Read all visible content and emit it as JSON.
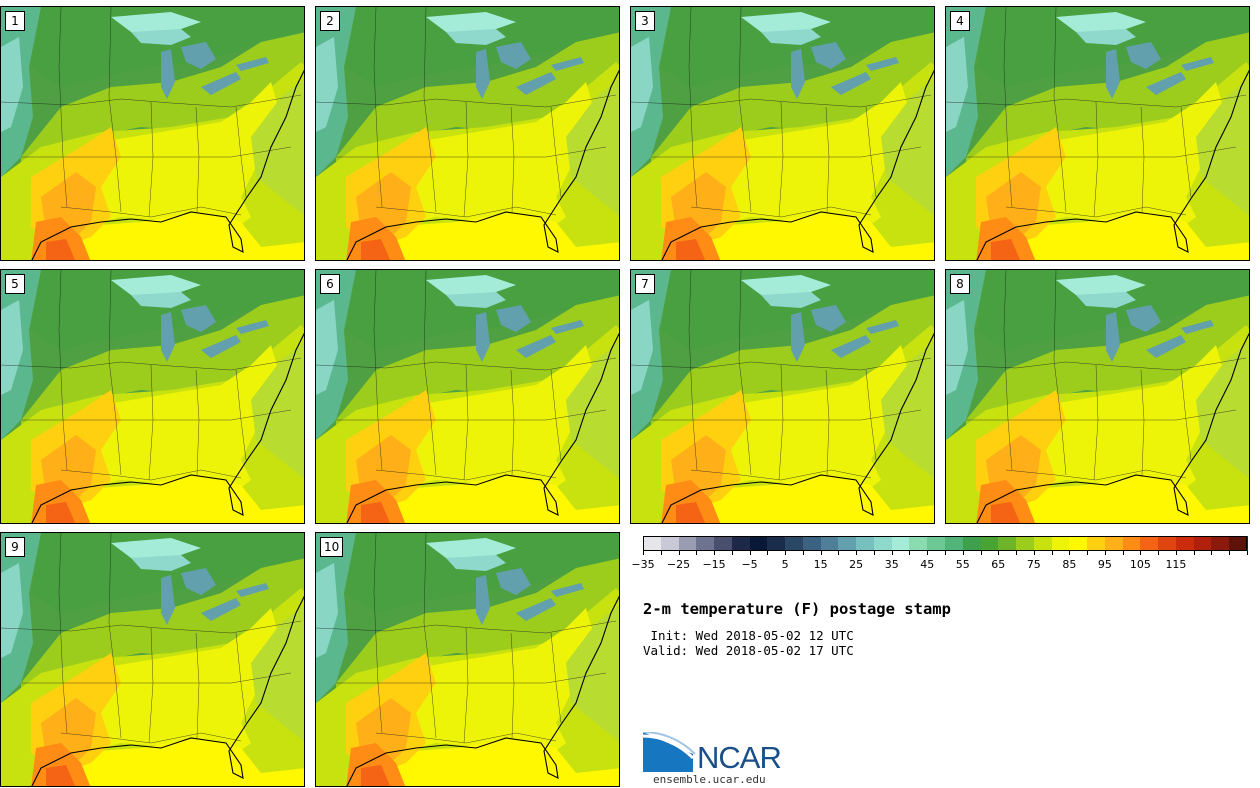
{
  "panels": [
    {
      "label": "1"
    },
    {
      "label": "2"
    },
    {
      "label": "3"
    },
    {
      "label": "4"
    },
    {
      "label": "5"
    },
    {
      "label": "6"
    },
    {
      "label": "7"
    },
    {
      "label": "8"
    },
    {
      "label": "9"
    },
    {
      "label": "10"
    }
  ],
  "colorbar": {
    "colors": [
      "#e6e6ea",
      "#c8c8d6",
      "#9a9cb2",
      "#6e7490",
      "#48506e",
      "#1e2848",
      "#0a1838",
      "#1a2c4c",
      "#2a4866",
      "#3c6282",
      "#4e7e98",
      "#62a0ae",
      "#78c0c0",
      "#8ed8cc",
      "#a4ecd8",
      "#8adcb0",
      "#6cc894",
      "#52b478",
      "#3ea04c",
      "#4aa434",
      "#6cb428",
      "#9ccc1c",
      "#c8e210",
      "#eef408",
      "#fff800",
      "#ffd010",
      "#ffb018",
      "#ff8c14",
      "#f46414",
      "#e04410",
      "#cc2c0c",
      "#b0200c",
      "#8c1a0c",
      "#5e1208"
    ],
    "tick_labels": [
      "−35",
      "−25",
      "−15",
      "−5",
      "5",
      "15",
      "25",
      "35",
      "45",
      "55",
      "65",
      "75",
      "85",
      "95",
      "105",
      "115"
    ]
  },
  "title": "2-m temperature (F) postage stamp",
  "init_line": " Init: Wed 2018-05-02 12 UTC",
  "valid_line": "Valid: Wed 2018-05-02 17 UTC",
  "logo": {
    "text": "NCAR",
    "url": "ensemble.ucar.edu"
  }
}
